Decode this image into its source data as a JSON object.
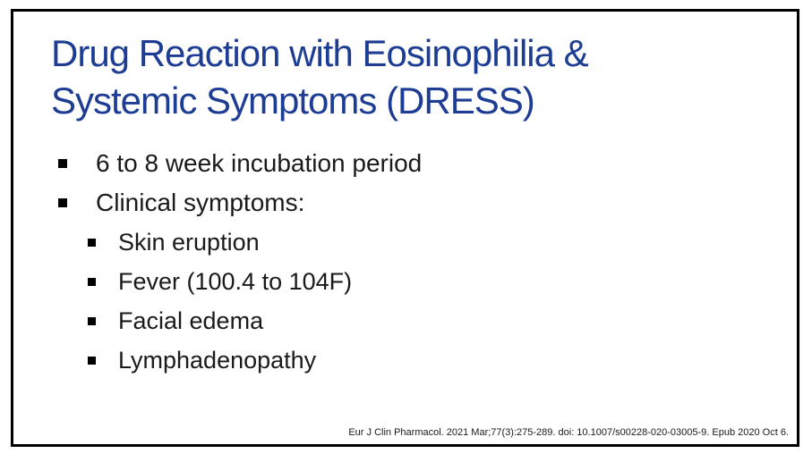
{
  "slide": {
    "title_line1": "Drug Reaction with Eosinophilia &",
    "title_line2": "Systemic Symptoms (DRESS)",
    "bullets": [
      {
        "level": 1,
        "text": "6 to 8 week incubation period"
      },
      {
        "level": 1,
        "text": "Clinical symptoms:"
      },
      {
        "level": 2,
        "text": "Skin eruption"
      },
      {
        "level": 2,
        "text": "Fever (100.4 to 104F)"
      },
      {
        "level": 2,
        "text": "Facial edema"
      },
      {
        "level": 2,
        "text": "Lymphadenopathy"
      }
    ],
    "citation": "Eur J Clin Pharmacol. 2021 Mar;77(3):275-289. doi: 10.1007/s00228-020-03005-9. Epub 2020 Oct 6.",
    "colors": {
      "title_blue": "#1d3c94",
      "body_text": "#1a1a1a",
      "border": "#000000",
      "background": "#ffffff"
    }
  }
}
